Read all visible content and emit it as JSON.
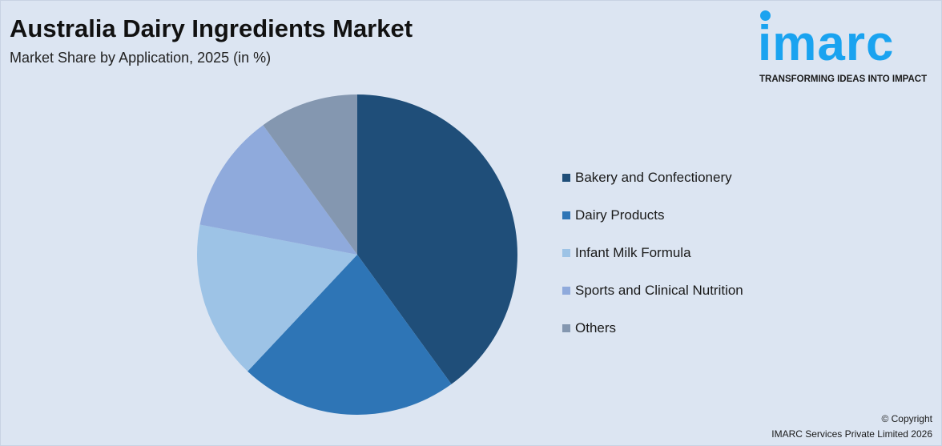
{
  "header": {
    "title": "Australia Dairy Ingredients Market",
    "subtitle": "Market Share by Application, 2025 (in %)"
  },
  "logo": {
    "text": "imarc",
    "tagline": "TRANSFORMING IDEAS INTO IMPACT",
    "color": "#1aa3f0"
  },
  "footer": {
    "copyright": "© Copyright",
    "company": "IMARC Services Private Limited 2026"
  },
  "chart_data": {
    "type": "pie",
    "title": "Australia Dairy Ingredients Market",
    "subtitle": "Market Share by Application, 2025 (in %)",
    "categories": [
      "Bakery and Confectionery",
      "Dairy Products",
      "Infant Milk Formula",
      "Sports and Clinical Nutrition",
      "Others"
    ],
    "values": [
      40,
      22,
      16,
      12,
      10
    ],
    "colors": [
      "#1f4e79",
      "#2e75b6",
      "#9dc3e6",
      "#8faadc",
      "#8497b0"
    ],
    "start": "top",
    "direction": "clockwise",
    "legend": "right"
  }
}
